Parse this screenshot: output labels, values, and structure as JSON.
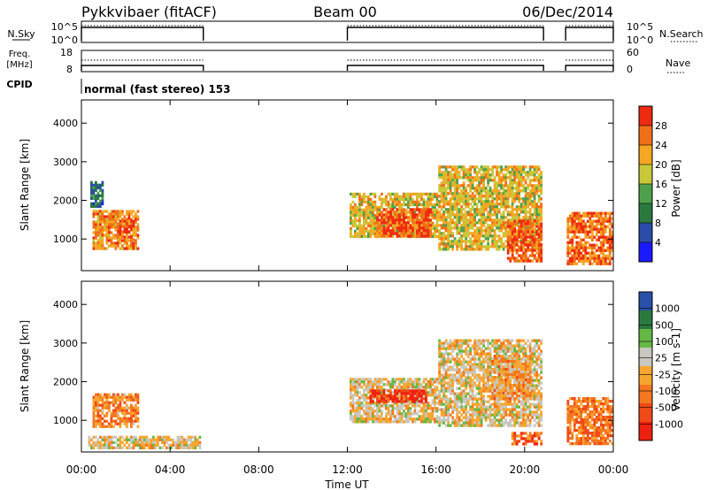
{
  "header": {
    "station": "Pykkvibaer (fitACF)",
    "beam": "Beam 00",
    "date": "06/Dec/2014"
  },
  "labels": {
    "nsky": "N.Sky",
    "freq_line1": "Freq.",
    "freq_line2": "[MHz]",
    "cpid": "CPID",
    "nsearch": "N.Search",
    "nave": "Nave",
    "cpid_text": "normal (fast stereo)  153"
  },
  "summary_panels": {
    "nsky_ticks": [
      "10^5",
      "10^0"
    ],
    "nsearch_ticks": [
      "10^5",
      "10^0"
    ],
    "freq_ticks": [
      "18",
      "8"
    ],
    "nave_ticks": [
      "60",
      "0"
    ],
    "operating_intervals_hours": [
      [
        0.0,
        5.5
      ],
      [
        12.0,
        20.85
      ],
      [
        21.85,
        24.0
      ]
    ],
    "freq_mhz_approx": 10.5,
    "nave_approx": 40
  },
  "colors": {
    "power": [
      "#1a1aff",
      "#2b4ca8",
      "#2a7a3f",
      "#4fa04c",
      "#c8c83a",
      "#f5a623",
      "#f07018",
      "#ee2a10"
    ],
    "velocity": [
      "#ee2010",
      "#f04a18",
      "#f37820",
      "#f6a630",
      "#c8c8c0",
      "#66b844",
      "#2a7a3f",
      "#2a4fa8"
    ]
  },
  "chart_data": [
    {
      "type": "heatmap",
      "title": "Power",
      "xlabel": "Time UT",
      "ylabel": "Slant Range [km]",
      "colorbar_label": "Power [dB]",
      "colorbar_ticks": [
        "4",
        "8",
        "12",
        "16",
        "20",
        "24",
        "28"
      ],
      "x_ticks": [
        "00:00",
        "04:00",
        "08:00",
        "12:00",
        "16:00",
        "20:00",
        "00:00"
      ],
      "y_ticks": [
        "1000",
        "2000",
        "3000",
        "4000"
      ],
      "xlim": [
        0,
        24
      ],
      "ylim": [
        180,
        4600
      ],
      "colorbar_range": [
        0,
        32
      ],
      "regions": [
        {
          "t0": 0.5,
          "t1": 2.6,
          "r0": 700,
          "r1": 1750,
          "value": 24
        },
        {
          "t0": 0.4,
          "t1": 1.0,
          "r0": 1800,
          "r1": 2500,
          "value": 8
        },
        {
          "t0": 1.6,
          "t1": 2.4,
          "r0": 900,
          "r1": 1500,
          "value": 28
        },
        {
          "t0": 12.1,
          "t1": 16.1,
          "r0": 1000,
          "r1": 2200,
          "value": 20
        },
        {
          "t0": 13.3,
          "t1": 15.8,
          "r0": 1000,
          "r1": 1800,
          "value": 28
        },
        {
          "t0": 16.1,
          "t1": 20.8,
          "r0": 700,
          "r1": 2900,
          "value": 20
        },
        {
          "t0": 19.2,
          "t1": 20.8,
          "r0": 400,
          "r1": 1500,
          "value": 28
        },
        {
          "t0": 21.9,
          "t1": 24.0,
          "r0": 300,
          "r1": 1700,
          "value": 26
        }
      ]
    },
    {
      "type": "heatmap",
      "title": "Velocity",
      "xlabel": "Time UT",
      "ylabel": "Slant Range [km]",
      "colorbar_label": "Velocity [m s-1]",
      "colorbar_ticks": [
        "-1000",
        "-500",
        "-100",
        "-25",
        "25",
        "100",
        "500",
        "1000"
      ],
      "x_ticks": [
        "00:00",
        "04:00",
        "08:00",
        "12:00",
        "16:00",
        "20:00",
        "00:00"
      ],
      "y_ticks": [
        "1000",
        "2000",
        "3000",
        "4000"
      ],
      "xlim": [
        0,
        24
      ],
      "ylim": [
        180,
        4600
      ],
      "colorbar_range": [
        -1000,
        1000
      ],
      "regions": [
        {
          "t0": 0.5,
          "t1": 2.6,
          "r0": 800,
          "r1": 1700,
          "value": -300
        },
        {
          "t0": 0.3,
          "t1": 5.4,
          "r0": 200,
          "r1": 600,
          "value": 0
        },
        {
          "t0": 12.1,
          "t1": 16.1,
          "r0": 900,
          "r1": 2100,
          "value": 0
        },
        {
          "t0": 13.0,
          "t1": 15.6,
          "r0": 1450,
          "r1": 1800,
          "value": -800
        },
        {
          "t0": 16.1,
          "t1": 20.8,
          "r0": 800,
          "r1": 3100,
          "value": 0
        },
        {
          "t0": 18.5,
          "t1": 20.3,
          "r0": 1500,
          "r1": 2700,
          "value": -200
        },
        {
          "t0": 19.4,
          "t1": 20.8,
          "r0": 350,
          "r1": 700,
          "value": -500
        },
        {
          "t0": 21.9,
          "t1": 24.0,
          "r0": 300,
          "r1": 1600,
          "value": -400
        }
      ]
    }
  ]
}
